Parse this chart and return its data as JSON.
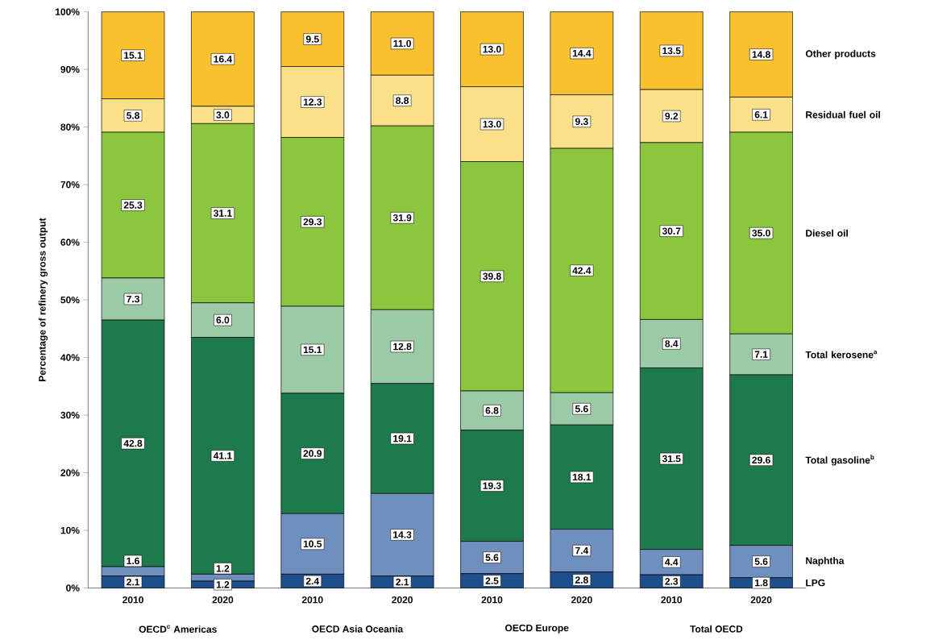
{
  "chart_data": {
    "type": "bar",
    "stacked": true,
    "ylabel": "Percentage of refinery gross output",
    "categories": [
      "2010",
      "2020",
      "2010",
      "2020",
      "2010",
      "2020",
      "2010",
      "2020"
    ],
    "annotations": [
      "OECD$^{c}$ Americas",
      "OECD Asia Oceania",
      "OECD Europe",
      "Total OECD"
    ],
    "ylim": [
      0,
      100
    ],
    "yticks": [
      {
        "value": 0,
        "label": "0%"
      },
      {
        "value": 10,
        "label": "10%"
      },
      {
        "value": 20,
        "label": "20%"
      },
      {
        "value": 30,
        "label": "30%"
      },
      {
        "value": 40,
        "label": "40%"
      },
      {
        "value": 50,
        "label": "50%"
      },
      {
        "value": 60,
        "label": "60%"
      },
      {
        "value": 70,
        "label": "70%"
      },
      {
        "value": 80,
        "label": "80%"
      },
      {
        "value": 90,
        "label": "90%"
      },
      {
        "value": 100,
        "label": "100%"
      }
    ],
    "series": [
      {
        "name": "LPG",
        "color": "#1f4e8c",
        "values": [
          2.1,
          1.2,
          2.4,
          2.1,
          2.5,
          2.8,
          2.3,
          1.8
        ],
        "value_labels": [
          "2.1",
          "1.2",
          "2.4",
          "2.1",
          "2.5",
          "2.8",
          "2.3",
          "1.8"
        ]
      },
      {
        "name": "Naphtha",
        "color": "#6f8fbf",
        "values": [
          1.6,
          1.2,
          10.5,
          14.3,
          5.6,
          7.4,
          4.4,
          5.6
        ],
        "value_labels": [
          "1.6",
          "1.2",
          "10.5",
          "14.3",
          "5.6",
          "7.4",
          "4.4",
          "5.6"
        ]
      },
      {
        "name": "Total gasoline$^{b}$",
        "color": "#1e7a4c",
        "values": [
          42.8,
          41.1,
          20.9,
          19.1,
          19.3,
          18.1,
          31.5,
          29.6
        ],
        "value_labels": [
          "42.8",
          "41.1",
          "20.9",
          "19.1",
          "19.3",
          "18.1",
          "31.5",
          "29.6"
        ]
      },
      {
        "name": "Total kerosene$^{a}$",
        "color": "#9cc9a6",
        "values": [
          7.3,
          6.0,
          15.1,
          12.8,
          6.8,
          5.6,
          8.4,
          7.1
        ],
        "value_labels": [
          "7.3",
          "6.0",
          "15.1",
          "12.8",
          "6.8",
          "5.6",
          "8.4",
          "7.1"
        ]
      },
      {
        "name": "Diesel oil",
        "color": "#8cc63e",
        "values": [
          25.3,
          31.1,
          29.3,
          31.9,
          39.8,
          42.4,
          30.7,
          35.0
        ],
        "value_labels": [
          "25.3",
          "31.1",
          "29.3",
          "31.9",
          "39.8",
          "42.4",
          "30.7",
          "35.0"
        ]
      },
      {
        "name": "Residual fuel oil",
        "color": "#fbe08a",
        "values": [
          5.8,
          3.0,
          12.3,
          8.8,
          13.0,
          9.3,
          9.2,
          6.1
        ],
        "value_labels": [
          "5.8",
          "3.0",
          "12.3",
          "8.8",
          "13.0",
          "9.3",
          "9.2",
          "6.1"
        ]
      },
      {
        "name": "Other products",
        "color": "#f9c12e",
        "values": [
          15.1,
          16.4,
          9.5,
          11.0,
          13.0,
          14.4,
          13.5,
          14.8
        ],
        "value_labels": [
          "15.1",
          "16.4",
          "9.5",
          "11.0",
          "13.0",
          "14.4",
          "13.5",
          "14.8"
        ]
      }
    ]
  }
}
